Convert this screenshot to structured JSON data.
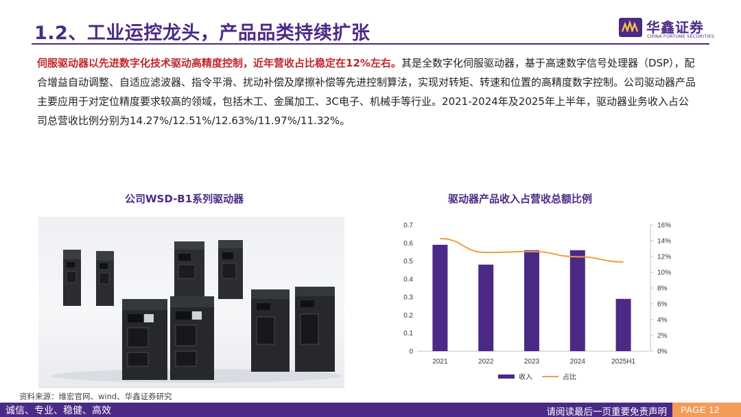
{
  "header": {
    "title": "1.2、工业运控龙头，产品品类持续扩张",
    "logo_cn": "华鑫证券",
    "logo_en": "CHINA FORTUNE SECURITIES"
  },
  "intro": {
    "highlight_red": "伺服驱动器",
    "highlight_bold": "以先进数字化技术驱动高精度控制，近年营收占比稳定在12%左右。",
    "body": "其是全数字化伺服驱动器，基于高速数字信号处理器（DSP），配合增益自动调整、自适应滤波器、指令平滑、扰动补偿及摩擦补偿等先进控制算法，实现对转矩、转速和位置的高精度数字控制。公司驱动器产品主要应用于对定位精度要求较高的领域，包括木工、金属加工、3C电子、机械手等行业。2021-2024年及2025年上半年，驱动器业务收入占公司总营收比例分别为14.27%/12.51%/12.63%/11.97%/11.32%。"
  },
  "left_panel": {
    "title": "公司WSD-B1系列驱动器"
  },
  "right_panel": {
    "title": "驱动器产品收入占营收总额比例"
  },
  "chart_data": {
    "type": "bar",
    "categories": [
      "2021",
      "2022",
      "2023",
      "2024",
      "2025H1"
    ],
    "series": [
      {
        "name": "收入",
        "type": "bar",
        "axis": "left",
        "values": [
          0.59,
          0.48,
          0.56,
          0.56,
          0.29
        ],
        "color": "#4b2a86"
      },
      {
        "name": "占比",
        "type": "line",
        "axis": "right",
        "values": [
          14.27,
          12.51,
          12.63,
          11.97,
          11.32
        ],
        "color": "#f39c3c"
      }
    ],
    "left_axis": {
      "ylim": [
        0,
        0.7
      ],
      "ticks": [
        "0",
        "0.1",
        "0.2",
        "0.3",
        "0.4",
        "0.5",
        "0.6",
        "0.7"
      ]
    },
    "right_axis": {
      "ylim": [
        0,
        16
      ],
      "ticks": [
        "0%",
        "2%",
        "4%",
        "6%",
        "8%",
        "10%",
        "12%",
        "14%",
        "16%"
      ]
    },
    "legend_position": "bottom"
  },
  "source": "资料来源：维宏官网、wind、华鑫证券研究",
  "footer": {
    "slogan": "诚信、专业、稳健、高效",
    "disclaimer": "请阅读最后一页重要免责声明",
    "page": "PAGE 12"
  },
  "colors": {
    "brand_purple": "#4b2a86",
    "accent_orange": "#f39c3c",
    "highlight_red": "#c0272d"
  }
}
